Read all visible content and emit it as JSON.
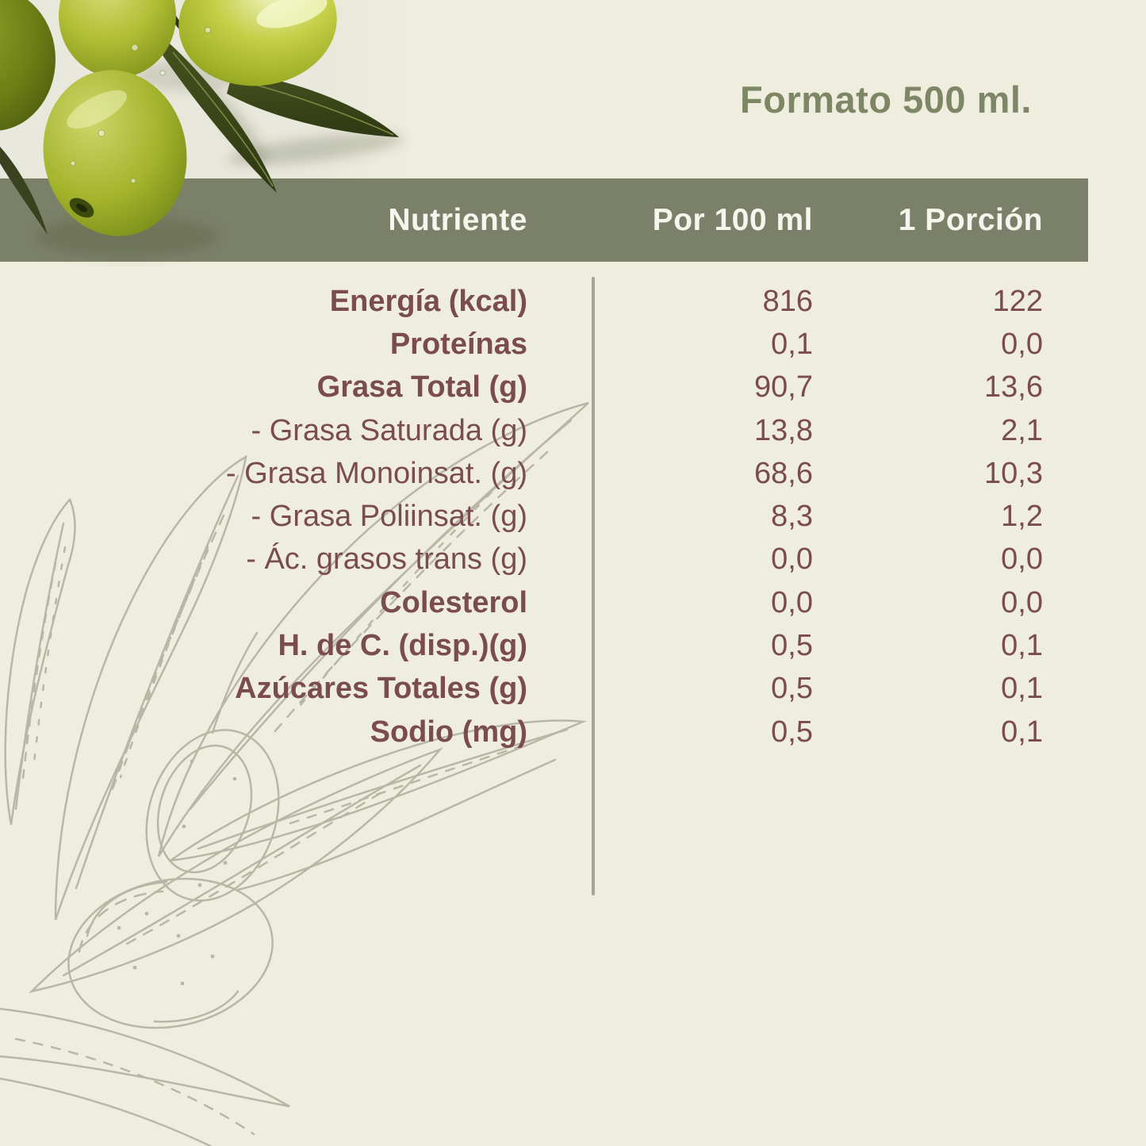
{
  "format_label": "Formato 500 ml.",
  "table": {
    "columns": [
      "Nutriente",
      "Por 100 ml",
      "1 Porción"
    ],
    "rows": [
      {
        "label": "Energía (kcal)",
        "bold": true,
        "per100": "816",
        "portion": "122"
      },
      {
        "label": "Proteínas",
        "bold": true,
        "per100": "0,1",
        "portion": "0,0"
      },
      {
        "label": "Grasa Total (g)",
        "bold": true,
        "per100": "90,7",
        "portion": "13,6"
      },
      {
        "label": "- Grasa Saturada (g)",
        "bold": false,
        "per100": "13,8",
        "portion": "2,1"
      },
      {
        "label": "- Grasa Monoinsat. (g)",
        "bold": false,
        "per100": "68,6",
        "portion": "10,3"
      },
      {
        "label": "- Grasa Poliinsat. (g)",
        "bold": false,
        "per100": "8,3",
        "portion": "1,2"
      },
      {
        "label": "- Ác. grasos trans (g)",
        "bold": false,
        "per100": "0,0",
        "portion": "0,0"
      },
      {
        "label": "Colesterol",
        "bold": true,
        "per100": "0,0",
        "portion": "0,0"
      },
      {
        "label": "H. de C. (disp.)(g)",
        "bold": true,
        "per100": "0,5",
        "portion": "0,1"
      },
      {
        "label": "Azúcares Totales (g)",
        "bold": true,
        "per100": "0,5",
        "portion": "0,1"
      },
      {
        "label": "Sodio (mg)",
        "bold": true,
        "per100": "0,5",
        "portion": "0,1"
      }
    ]
  },
  "colors": {
    "background": "#efeede",
    "band_green": "#7b8169",
    "text_maroon": "#7b4c4d",
    "format_green": "#7d8766",
    "header_text": "#f7f6ee",
    "divider": "#a7a293",
    "sketch_stroke": "#9b9584"
  },
  "decor": {
    "photo": "green-olives-photo",
    "sketch": "olive-branch-line-art-sketch"
  }
}
